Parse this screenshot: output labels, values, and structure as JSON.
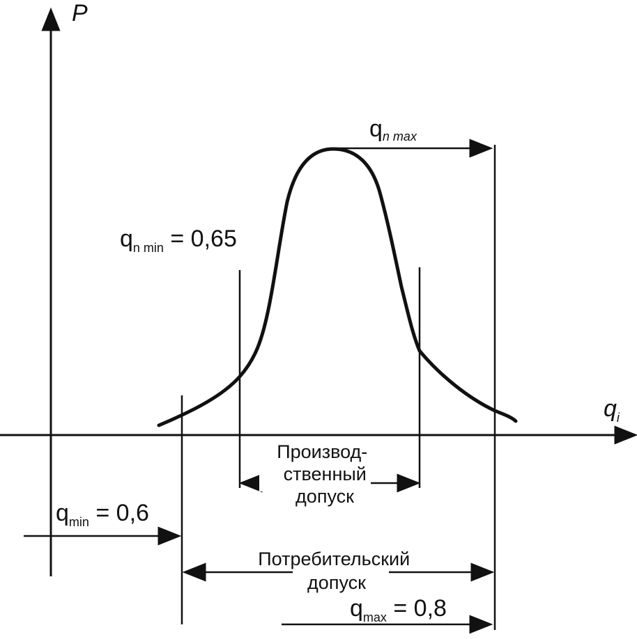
{
  "axes": {
    "y_label": "P",
    "x_label_main": "q",
    "x_label_sub": "i"
  },
  "labels": {
    "qn_max": {
      "main": "q",
      "sub": "n max",
      "suffix": ""
    },
    "qn_min": {
      "main": "q",
      "sub": "n min",
      "suffix": " = 0,65"
    },
    "q_min": {
      "main": "q",
      "sub": "min",
      "suffix": " = 0,6"
    },
    "q_max": {
      "main": "q",
      "sub": "max",
      "suffix": " = 0,8"
    },
    "production_tolerance": [
      "Производ-",
      "ственный",
      "допуск"
    ],
    "consumer_tolerance": [
      "Потребительский",
      "допуск"
    ]
  },
  "colors": {
    "ink": "#111111",
    "background": "#ffffff"
  }
}
